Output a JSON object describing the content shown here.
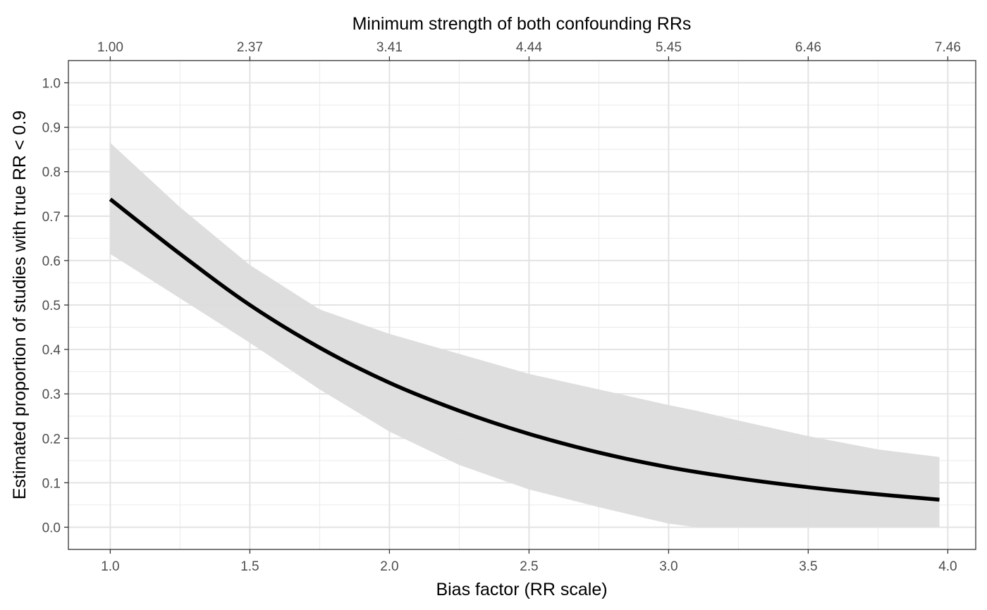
{
  "chart_data": {
    "type": "line",
    "title": "",
    "xlabel": "Bias factor (RR scale)",
    "ylabel": "Estimated proportion of studies with true RR < 0.9",
    "secondary_xlabel": "Minimum strength of both confounding RRs",
    "xlim": [
      0.85,
      4.1
    ],
    "ylim": [
      -0.05,
      1.05
    ],
    "x_ticks": [
      1.0,
      1.5,
      2.0,
      2.5,
      3.0,
      3.5,
      4.0
    ],
    "x_tick_labels": [
      "1.0",
      "1.5",
      "2.0",
      "2.5",
      "3.0",
      "3.5",
      "4.0"
    ],
    "y_ticks": [
      0.0,
      0.1,
      0.2,
      0.3,
      0.4,
      0.5,
      0.6,
      0.7,
      0.8,
      0.9,
      1.0
    ],
    "y_tick_labels": [
      "0.0",
      "0.1",
      "0.2",
      "0.3",
      "0.4",
      "0.5",
      "0.6",
      "0.7",
      "0.8",
      "0.9",
      "1.0"
    ],
    "secondary_x_ticks": [
      1.0,
      1.5,
      2.0,
      2.5,
      3.0,
      3.5,
      4.0
    ],
    "secondary_x_tick_labels": [
      "1.00",
      "2.37",
      "3.41",
      "4.44",
      "5.45",
      "6.46",
      "7.46"
    ],
    "grid": true,
    "series": [
      {
        "type": "line",
        "color": "#000000",
        "x": [
          1.0,
          1.25,
          1.5,
          1.75,
          2.0,
          2.25,
          2.5,
          2.75,
          3.0,
          3.25,
          3.5,
          3.75,
          3.97
        ],
        "y": [
          0.738,
          0.615,
          0.5,
          0.404,
          0.325,
          0.262,
          0.21,
          0.168,
          0.135,
          0.11,
          0.09,
          0.074,
          0.062
        ]
      },
      {
        "type": "band",
        "color": "#dcdcdc",
        "x": [
          1.0,
          1.25,
          1.5,
          1.75,
          2.0,
          2.25,
          2.5,
          2.75,
          3.0,
          3.1,
          3.25,
          3.5,
          3.75,
          3.97
        ],
        "lower": [
          0.615,
          0.515,
          0.415,
          0.31,
          0.215,
          0.14,
          0.085,
          0.045,
          0.008,
          0.0,
          0.0,
          0.0,
          0.0,
          0.0
        ],
        "upper": [
          0.865,
          0.72,
          0.59,
          0.49,
          0.435,
          0.39,
          0.345,
          0.31,
          0.275,
          0.262,
          0.24,
          0.205,
          0.175,
          0.158
        ]
      }
    ]
  }
}
